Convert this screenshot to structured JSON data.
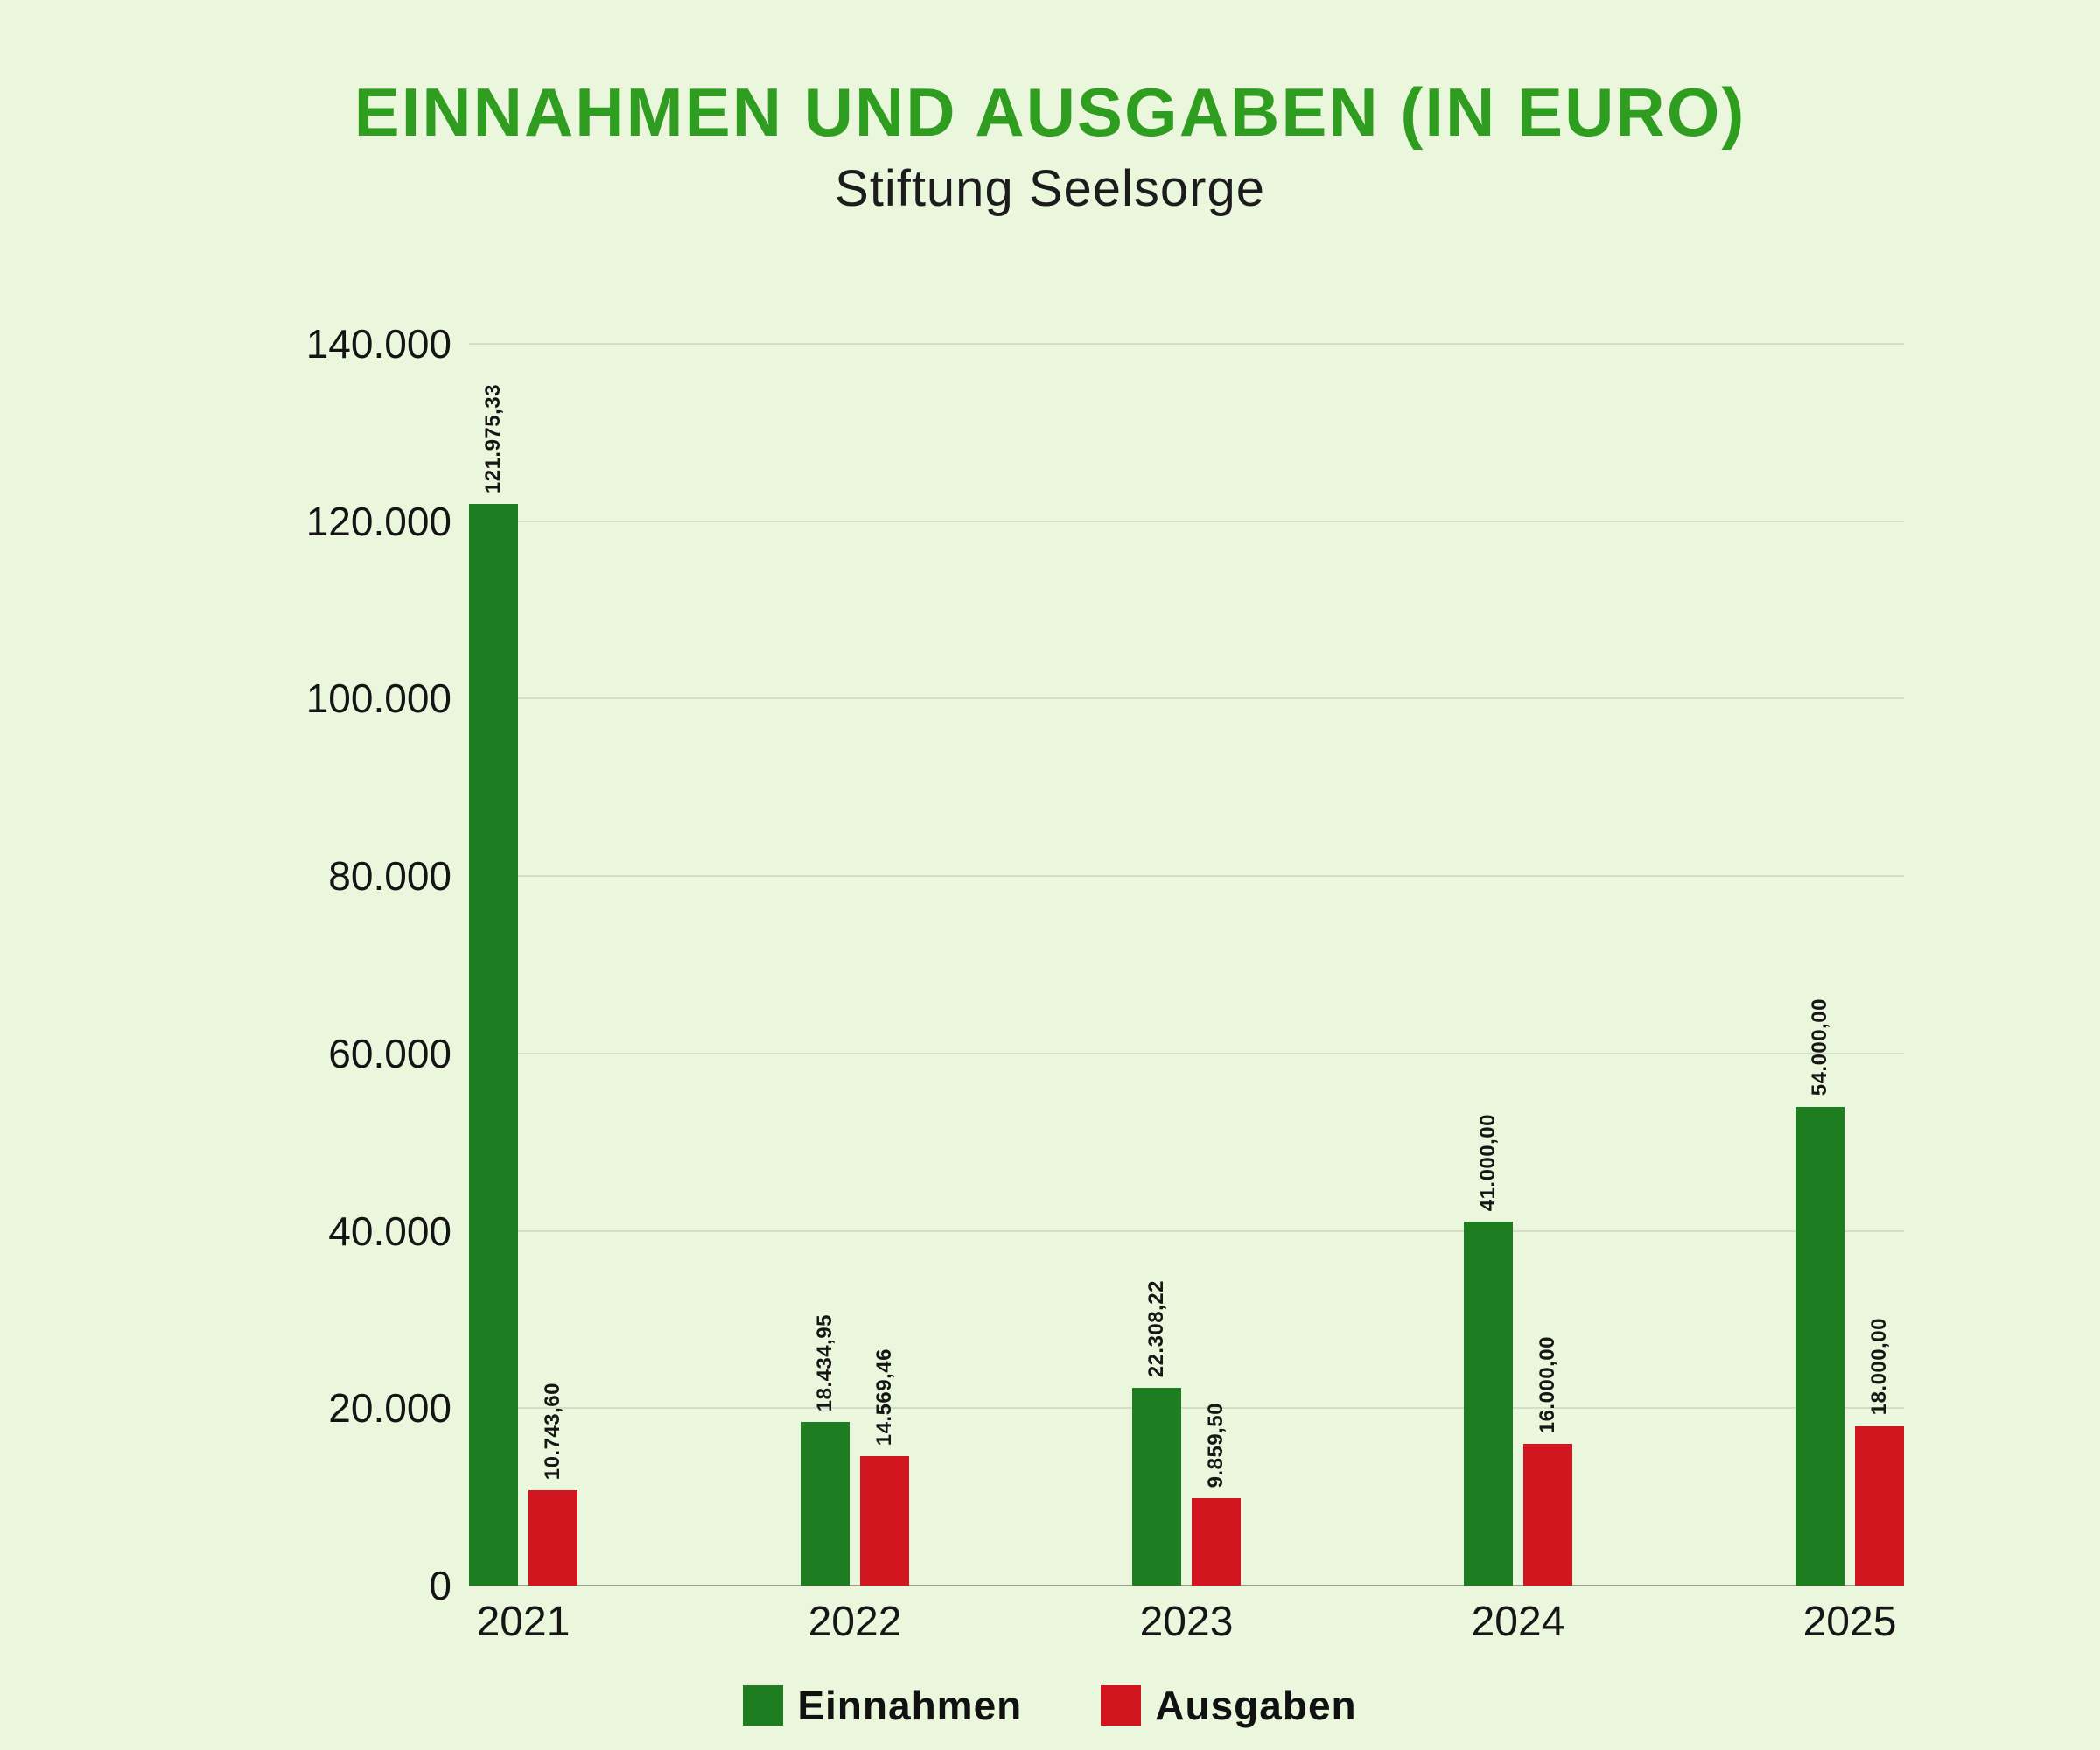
{
  "title": "EINNAHMEN UND AUSGABEN (IN EURO)",
  "subtitle": "Stiftung Seelsorge",
  "colors": {
    "background": "#eaf7dc",
    "title_green": "#2f9e20",
    "einnahmen_green": "#1f7d21",
    "ausgaben_red": "#d1161f"
  },
  "chart_data": {
    "type": "bar",
    "title": "EINNAHMEN UND AUSGABEN (IN EURO)",
    "subtitle": "Stiftung Seelsorge",
    "categories": [
      "2021",
      "2022",
      "2023",
      "2024",
      "2025"
    ],
    "series": [
      {
        "name": "Einnahmen",
        "color": "#1f7d21",
        "values": [
          121975.33,
          18434.95,
          22308.22,
          41000.0,
          54000.0
        ],
        "labels": [
          "121.975,33",
          "18.434,95",
          "22.308,22",
          "41.000,00",
          "54.000,00"
        ]
      },
      {
        "name": "Ausgaben",
        "color": "#d1161f",
        "values": [
          10743.6,
          14569.46,
          9859.5,
          16000.0,
          18000.0
        ],
        "labels": [
          "10.743,60",
          "14.569,46",
          "9.859,50",
          "16.000,00",
          "18.000,00"
        ]
      }
    ],
    "ylim": [
      0,
      140000
    ],
    "ytick_step": 20000,
    "ytick_labels": [
      "0",
      "20.000",
      "40.000",
      "60.000",
      "80.000",
      "100.000",
      "120.000",
      "140.000"
    ],
    "grid": true,
    "legend_position": "bottom"
  },
  "legend": {
    "items": [
      {
        "label": "Einnahmen",
        "color": "#1f7d21"
      },
      {
        "label": "Ausgaben",
        "color": "#d1161f"
      }
    ]
  }
}
